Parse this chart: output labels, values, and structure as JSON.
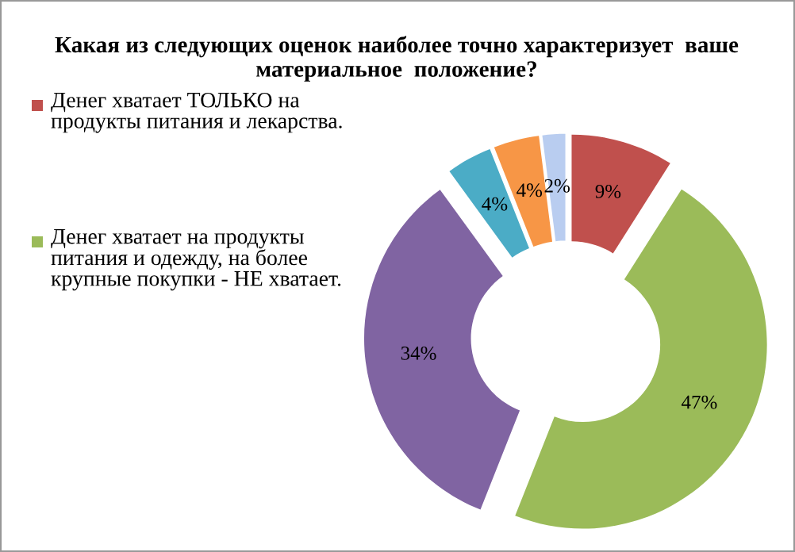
{
  "chart_data": {
    "type": "donut",
    "title": "Какая из следующих оценок наиболее точно характеризует  ваше материальное  положение?",
    "categories": [
      "Денег хватает ТОЛЬКО на продукты питания и лекарства.",
      "Денег хватает на продукты питания и одежду, на более крупные покупки - НЕ хватает.",
      null,
      null,
      null,
      null
    ],
    "values": [
      9,
      47,
      34,
      4,
      4,
      2
    ],
    "colors": [
      "#c0504d",
      "#9bbb59",
      "#8064a2",
      "#4bacc6",
      "#f79646",
      "#b9cdf0"
    ],
    "value_labels": [
      "9%",
      "47%",
      "34%",
      "4%",
      "4%",
      "2%"
    ],
    "legend": "left"
  }
}
